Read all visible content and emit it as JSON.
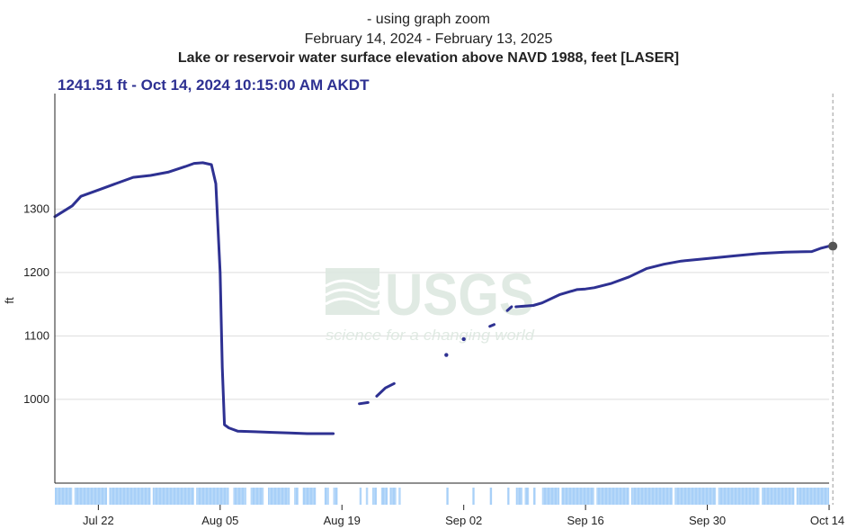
{
  "title": {
    "line1": "- using graph zoom",
    "line2": "February 14, 2024 - February 13, 2025",
    "line3": "Lake or reservoir water surface elevation above NAVD 1988, feet [LASER]"
  },
  "readout": "1241.51 ft - Oct 14, 2024 10:15:00 AM AKDT",
  "watermark": {
    "logo": "USGS",
    "tagline": "science for a changing world"
  },
  "colors": {
    "series": "#2e3192",
    "marker": "#555555",
    "availability": "#a8d0f8",
    "grid": "#dddddd",
    "watermark": "#dde8e0"
  },
  "chart_data": {
    "type": "line",
    "ylabel": "ft",
    "ylim": [
      868,
      1482
    ],
    "yticks": [
      1000,
      1100,
      1200,
      1300
    ],
    "xlim": [
      "2024-07-17",
      "2024-10-14"
    ],
    "xticks": [
      {
        "date": "2024-07-22",
        "label": "Jul 22"
      },
      {
        "date": "2024-08-05",
        "label": "Aug 05"
      },
      {
        "date": "2024-08-19",
        "label": "Aug 19"
      },
      {
        "date": "2024-09-02",
        "label": "Sep 02"
      },
      {
        "date": "2024-09-16",
        "label": "Sep 16"
      },
      {
        "date": "2024-09-30",
        "label": "Sep 30"
      },
      {
        "date": "2024-10-14",
        "label": "Oct 14"
      }
    ],
    "grid": true,
    "series": [
      {
        "segments": [
          [
            [
              "2024-07-17",
              1288
            ],
            [
              "2024-07-19",
              1305
            ],
            [
              "2024-07-20",
              1320
            ],
            [
              "2024-07-22",
              1330
            ],
            [
              "2024-07-24",
              1340
            ],
            [
              "2024-07-26",
              1350
            ],
            [
              "2024-07-28",
              1353
            ],
            [
              "2024-07-30",
              1358
            ],
            [
              "2024-08-01",
              1367
            ],
            [
              "2024-08-02",
              1372
            ],
            [
              "2024-08-03",
              1373
            ],
            [
              "2024-08-04",
              1370
            ],
            [
              "2024-08-04T12:00",
              1340
            ],
            [
              "2024-08-05",
              1200
            ],
            [
              "2024-08-05T06:00",
              1050
            ],
            [
              "2024-08-05T12:00",
              960
            ],
            [
              "2024-08-06",
              955
            ],
            [
              "2024-08-07",
              950
            ],
            [
              "2024-08-09",
              949
            ],
            [
              "2024-08-11",
              948
            ],
            [
              "2024-08-13",
              947
            ],
            [
              "2024-08-15",
              946
            ],
            [
              "2024-08-18",
              946
            ]
          ],
          [
            [
              "2024-08-21",
              993
            ],
            [
              "2024-08-22",
              995
            ]
          ],
          [
            [
              "2024-08-23",
              1005
            ],
            [
              "2024-08-24",
              1018
            ],
            [
              "2024-08-25",
              1025
            ]
          ],
          [
            [
              "2024-08-31",
              1070
            ]
          ],
          [
            [
              "2024-09-02",
              1095
            ]
          ],
          [
            [
              "2024-09-05",
              1115
            ],
            [
              "2024-09-05T12:00",
              1118
            ]
          ],
          [
            [
              "2024-09-07",
              1140
            ],
            [
              "2024-09-07T12:00",
              1146
            ]
          ],
          [
            [
              "2024-09-08",
              1146
            ],
            [
              "2024-09-10",
              1148
            ],
            [
              "2024-09-11",
              1152
            ],
            [
              "2024-09-13",
              1165
            ],
            [
              "2024-09-15",
              1173
            ],
            [
              "2024-09-16",
              1174
            ],
            [
              "2024-09-17",
              1176
            ],
            [
              "2024-09-19",
              1183
            ],
            [
              "2024-09-21",
              1193
            ],
            [
              "2024-09-23",
              1206
            ],
            [
              "2024-09-25",
              1213
            ],
            [
              "2024-09-27",
              1218
            ],
            [
              "2024-09-30",
              1222
            ],
            [
              "2024-10-03",
              1226
            ],
            [
              "2024-10-06",
              1230
            ],
            [
              "2024-10-09",
              1232
            ],
            [
              "2024-10-12",
              1233
            ],
            [
              "2024-10-13",
              1238
            ],
            [
              "2024-10-14",
              1241.51
            ]
          ]
        ]
      }
    ],
    "highlight": {
      "date": "2024-10-14T10:15",
      "value": 1241.51
    },
    "availability": [
      [
        "2024-07-17",
        "2024-07-19"
      ],
      [
        "2024-07-19T06:00",
        "2024-07-23"
      ],
      [
        "2024-07-23T06:00",
        "2024-07-28"
      ],
      [
        "2024-07-28T06:00",
        "2024-08-02"
      ],
      [
        "2024-08-02T06:00",
        "2024-08-06"
      ],
      [
        "2024-08-06T12:00",
        "2024-08-08"
      ],
      [
        "2024-08-08T12:00",
        "2024-08-10"
      ],
      [
        "2024-08-10T12:00",
        "2024-08-13"
      ],
      [
        "2024-08-13T12:00",
        "2024-08-14"
      ],
      [
        "2024-08-14T12:00",
        "2024-08-16"
      ],
      [
        "2024-08-17",
        "2024-08-17T12:00"
      ],
      [
        "2024-08-18",
        "2024-08-18T12:00"
      ],
      [
        "2024-08-21",
        "2024-08-21T06:00"
      ],
      [
        "2024-08-21T18:00",
        "2024-08-22"
      ],
      [
        "2024-08-22T12:00",
        "2024-08-23"
      ],
      [
        "2024-08-23T12:00",
        "2024-08-24T06:00"
      ],
      [
        "2024-08-24T12:00",
        "2024-08-25T06:00"
      ],
      [
        "2024-08-25T12:00",
        "2024-08-25T18:00"
      ],
      [
        "2024-08-31",
        "2024-08-31T06:00"
      ],
      [
        "2024-09-03",
        "2024-09-03T06:00"
      ],
      [
        "2024-09-05",
        "2024-09-05T06:00"
      ],
      [
        "2024-09-07",
        "2024-09-07T06:00"
      ],
      [
        "2024-09-08",
        "2024-09-08T18:00"
      ],
      [
        "2024-09-09",
        "2024-09-09T12:00"
      ],
      [
        "2024-09-10",
        "2024-09-10T06:00"
      ],
      [
        "2024-09-11",
        "2024-09-13"
      ],
      [
        "2024-09-13T06:00",
        "2024-09-17"
      ],
      [
        "2024-09-17T06:00",
        "2024-09-21"
      ],
      [
        "2024-09-21T06:00",
        "2024-09-26"
      ],
      [
        "2024-09-26T06:00",
        "2024-10-01"
      ],
      [
        "2024-10-01T06:00",
        "2024-10-06"
      ],
      [
        "2024-10-06T06:00",
        "2024-10-10"
      ],
      [
        "2024-10-10T06:00",
        "2024-10-14"
      ]
    ]
  }
}
